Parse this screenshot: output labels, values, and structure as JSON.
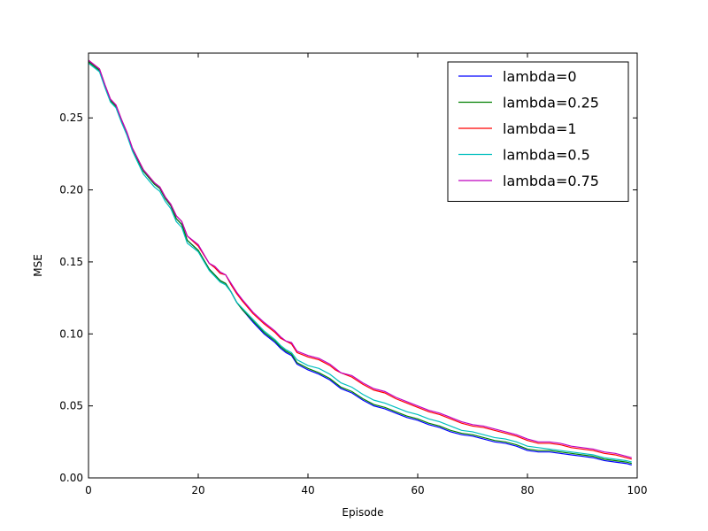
{
  "chart_data": {
    "type": "line",
    "title": "",
    "xlabel": "Episode",
    "ylabel": "MSE",
    "xlim": [
      0,
      100
    ],
    "ylim": [
      0,
      0.295
    ],
    "xticks": [
      0,
      20,
      40,
      60,
      80,
      100
    ],
    "xtick_labels": [
      "0",
      "20",
      "40",
      "60",
      "80",
      "100"
    ],
    "yticks": [
      0.0,
      0.05,
      0.1,
      0.15,
      0.2,
      0.25
    ],
    "ytick_labels": [
      "0.00",
      "0.05",
      "0.10",
      "0.15",
      "0.20",
      "0.25"
    ],
    "grid": false,
    "legend": "top-right",
    "x": [
      0,
      2,
      3,
      4,
      5,
      6,
      7,
      8,
      10,
      12,
      13,
      14,
      15,
      16,
      17,
      18,
      20,
      22,
      23,
      24,
      25,
      26,
      27,
      28,
      30,
      32,
      34,
      35,
      36,
      37,
      38,
      40,
      42,
      44,
      45,
      46,
      48,
      50,
      52,
      54,
      56,
      58,
      60,
      62,
      64,
      66,
      68,
      70,
      72,
      74,
      76,
      78,
      80,
      82,
      84,
      86,
      88,
      90,
      92,
      94,
      96,
      98,
      99
    ],
    "series": [
      {
        "name": "lambda=0",
        "color": "#0000ff",
        "values": [
          0.289,
          0.283,
          0.272,
          0.262,
          0.258,
          0.248,
          0.239,
          0.228,
          0.213,
          0.204,
          0.201,
          0.194,
          0.189,
          0.18,
          0.176,
          0.165,
          0.158,
          0.145,
          0.141,
          0.137,
          0.135,
          0.129,
          0.122,
          0.117,
          0.108,
          0.1,
          0.094,
          0.09,
          0.087,
          0.085,
          0.079,
          0.075,
          0.072,
          0.068,
          0.065,
          0.062,
          0.059,
          0.054,
          0.05,
          0.048,
          0.045,
          0.042,
          0.04,
          0.037,
          0.035,
          0.032,
          0.03,
          0.029,
          0.027,
          0.025,
          0.024,
          0.022,
          0.019,
          0.018,
          0.018,
          0.017,
          0.016,
          0.015,
          0.014,
          0.012,
          0.011,
          0.01,
          0.009
        ]
      },
      {
        "name": "lambda=0.25",
        "color": "#008000",
        "values": [
          0.289,
          0.283,
          0.272,
          0.262,
          0.258,
          0.248,
          0.239,
          0.228,
          0.213,
          0.204,
          0.201,
          0.194,
          0.189,
          0.18,
          0.176,
          0.165,
          0.158,
          0.145,
          0.141,
          0.137,
          0.135,
          0.129,
          0.122,
          0.117,
          0.109,
          0.101,
          0.095,
          0.091,
          0.088,
          0.086,
          0.08,
          0.076,
          0.073,
          0.069,
          0.066,
          0.063,
          0.06,
          0.055,
          0.051,
          0.049,
          0.046,
          0.043,
          0.041,
          0.038,
          0.036,
          0.033,
          0.031,
          0.03,
          0.028,
          0.026,
          0.025,
          0.023,
          0.02,
          0.019,
          0.019,
          0.018,
          0.017,
          0.016,
          0.015,
          0.013,
          0.012,
          0.011,
          0.01
        ]
      },
      {
        "name": "lambda=1",
        "color": "#ff0000",
        "values": [
          0.29,
          0.284,
          0.273,
          0.263,
          0.259,
          0.249,
          0.24,
          0.229,
          0.214,
          0.205,
          0.202,
          0.195,
          0.19,
          0.182,
          0.178,
          0.168,
          0.161,
          0.149,
          0.146,
          0.142,
          0.141,
          0.134,
          0.128,
          0.123,
          0.114,
          0.107,
          0.101,
          0.097,
          0.095,
          0.093,
          0.087,
          0.084,
          0.082,
          0.078,
          0.075,
          0.073,
          0.07,
          0.065,
          0.061,
          0.059,
          0.055,
          0.052,
          0.049,
          0.046,
          0.044,
          0.041,
          0.038,
          0.036,
          0.035,
          0.033,
          0.031,
          0.029,
          0.026,
          0.024,
          0.024,
          0.023,
          0.021,
          0.02,
          0.019,
          0.017,
          0.016,
          0.014,
          0.013
        ]
      },
      {
        "name": "lambda=0.5",
        "color": "#00bfbf",
        "values": [
          0.288,
          0.282,
          0.271,
          0.261,
          0.257,
          0.247,
          0.238,
          0.227,
          0.211,
          0.202,
          0.199,
          0.192,
          0.187,
          0.178,
          0.174,
          0.163,
          0.157,
          0.144,
          0.14,
          0.136,
          0.134,
          0.129,
          0.122,
          0.118,
          0.11,
          0.102,
          0.096,
          0.092,
          0.089,
          0.087,
          0.082,
          0.078,
          0.076,
          0.072,
          0.069,
          0.066,
          0.063,
          0.058,
          0.054,
          0.052,
          0.049,
          0.046,
          0.044,
          0.041,
          0.039,
          0.036,
          0.033,
          0.032,
          0.03,
          0.028,
          0.027,
          0.025,
          0.022,
          0.021,
          0.02,
          0.019,
          0.018,
          0.017,
          0.016,
          0.014,
          0.013,
          0.012,
          0.011
        ]
      },
      {
        "name": "lambda=0.75",
        "color": "#bf00bf",
        "values": [
          0.29,
          0.284,
          0.273,
          0.263,
          0.259,
          0.249,
          0.24,
          0.229,
          0.214,
          0.205,
          0.202,
          0.195,
          0.19,
          0.182,
          0.178,
          0.168,
          0.162,
          0.149,
          0.147,
          0.143,
          0.141,
          0.135,
          0.129,
          0.124,
          0.115,
          0.108,
          0.102,
          0.098,
          0.095,
          0.094,
          0.088,
          0.085,
          0.083,
          0.079,
          0.076,
          0.073,
          0.071,
          0.066,
          0.062,
          0.06,
          0.056,
          0.053,
          0.05,
          0.047,
          0.045,
          0.042,
          0.039,
          0.037,
          0.036,
          0.034,
          0.032,
          0.03,
          0.027,
          0.025,
          0.025,
          0.024,
          0.022,
          0.021,
          0.02,
          0.018,
          0.017,
          0.015,
          0.014
        ]
      }
    ]
  }
}
